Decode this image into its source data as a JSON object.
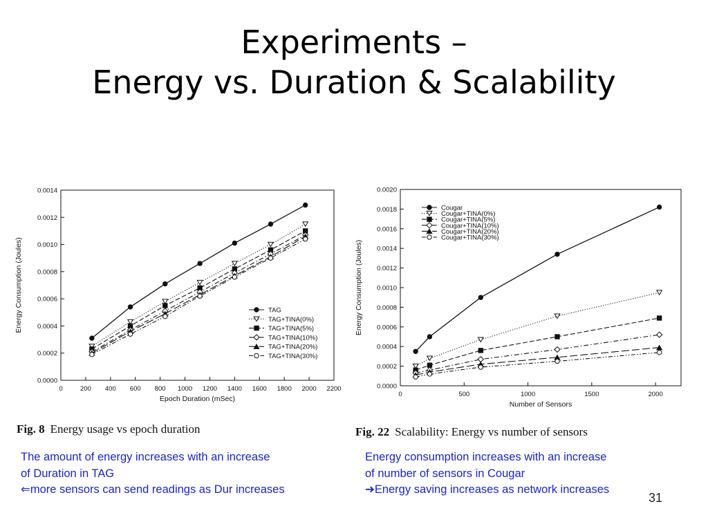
{
  "slide": {
    "title_line1": "Experiments –",
    "title_line2": "Energy vs. Duration & Scalability",
    "page_number": "31"
  },
  "captions": {
    "left_num": "Fig. 8",
    "left_text": "Energy usage vs epoch duration",
    "right_num": "Fig. 22",
    "right_text": "Scalability: Energy vs number of sensors"
  },
  "notes": {
    "left_line1": "The amount of energy increases with an increase",
    "left_line2": "of Duration in TAG",
    "left_line3": "more sensors can send readings as Dur increases",
    "left_arrow": "⇐",
    "right_line1": "Energy consumption increases with an increase",
    "right_line2": "of number of sensors in Cougar",
    "right_line3": "Energy saving increases as network increases",
    "right_arrow": "➔"
  },
  "chart_data": [
    {
      "type": "line",
      "xlabel": "Epoch Duration (mSec)",
      "ylabel": "Energy Consumption (Joules)",
      "xlim": [
        0,
        2200
      ],
      "ylim": [
        0,
        0.0014
      ],
      "xticks": [
        "0",
        "200",
        "400",
        "600",
        "800",
        "1000",
        "1200",
        "1400",
        "1600",
        "1800",
        "2000",
        "2200"
      ],
      "yticks": [
        "0.0000",
        "0.0002",
        "0.0004",
        "0.0006",
        "0.0008",
        "0.0010",
        "0.0012",
        "0.0014"
      ],
      "legend_position": "lower-right",
      "x": [
        250,
        560,
        840,
        1120,
        1400,
        1690,
        1970
      ],
      "series": [
        {
          "name": "TAG",
          "marker": "filled-circle",
          "dash": "solid",
          "values": [
            0.00031,
            0.00054,
            0.00071,
            0.00086,
            0.00101,
            0.00115,
            0.00129
          ]
        },
        {
          "name": "TAG+TINA(0%)",
          "marker": "open-triangle-down",
          "dash": "dotted",
          "values": [
            0.00025,
            0.00043,
            0.00058,
            0.00072,
            0.00086,
            0.001,
            0.00115
          ]
        },
        {
          "name": "TAG+TINA(5%)",
          "marker": "filled-square",
          "dash": "dashed",
          "values": [
            0.00023,
            0.0004,
            0.00055,
            0.00068,
            0.00082,
            0.00096,
            0.0011
          ]
        },
        {
          "name": "TAG+TINA(10%)",
          "marker": "open-diamond",
          "dash": "dashdot",
          "values": [
            0.00021,
            0.00037,
            0.00051,
            0.00065,
            0.00079,
            0.00093,
            0.00107
          ]
        },
        {
          "name": "TAG+TINA(20%)",
          "marker": "filled-triangle-up",
          "dash": "longdash",
          "values": [
            0.0002,
            0.00036,
            0.00049,
            0.00063,
            0.00077,
            0.00091,
            0.00106
          ]
        },
        {
          "name": "TAG+TINA(30%)",
          "marker": "open-circle",
          "dash": "dashdotdot",
          "values": [
            0.00019,
            0.00034,
            0.00047,
            0.00062,
            0.00076,
            0.0009,
            0.00104
          ]
        }
      ]
    },
    {
      "type": "line",
      "xlabel": "Number of Sensors",
      "ylabel": "Energy Consumption (Joules)",
      "xlim": [
        0,
        2200
      ],
      "ylim": [
        0,
        0.002
      ],
      "xticks": [
        "0",
        "500",
        "1000",
        "1500",
        "2000"
      ],
      "yticks": [
        "0.0000",
        "0.0002",
        "0.0004",
        "0.0006",
        "0.0008",
        "0.0010",
        "0.0012",
        "0.0014",
        "0.0016",
        "0.0018",
        "0.0020"
      ],
      "legend_position": "top-left",
      "x": [
        120,
        230,
        630,
        1230,
        2030
      ],
      "series": [
        {
          "name": "Cougar",
          "marker": "filled-circle",
          "dash": "solid",
          "values": [
            0.00035,
            0.0005,
            0.0009,
            0.00134,
            0.00182
          ]
        },
        {
          "name": "Cougar+TINA(0%)",
          "marker": "open-triangle-down",
          "dash": "dotted",
          "values": [
            0.0002,
            0.00028,
            0.00047,
            0.00071,
            0.00095
          ]
        },
        {
          "name": "Cougar+TINA(5%)",
          "marker": "filled-square",
          "dash": "dashed",
          "values": [
            0.00016,
            0.00021,
            0.00036,
            0.0005,
            0.00069
          ]
        },
        {
          "name": "Cougar+TINA(10%)",
          "marker": "open-diamond",
          "dash": "dashdot",
          "values": [
            0.00013,
            0.00016,
            0.00027,
            0.00037,
            0.00052
          ]
        },
        {
          "name": "Cougar+TINA(20%)",
          "marker": "filled-triangle-up",
          "dash": "longdash",
          "values": [
            0.00011,
            0.00014,
            0.00022,
            0.00029,
            0.00039
          ]
        },
        {
          "name": "Cougar+TINA(30%)",
          "marker": "open-circle",
          "dash": "dashdotdot",
          "values": [
            9e-05,
            0.00012,
            0.00019,
            0.00025,
            0.00034
          ]
        }
      ]
    }
  ]
}
